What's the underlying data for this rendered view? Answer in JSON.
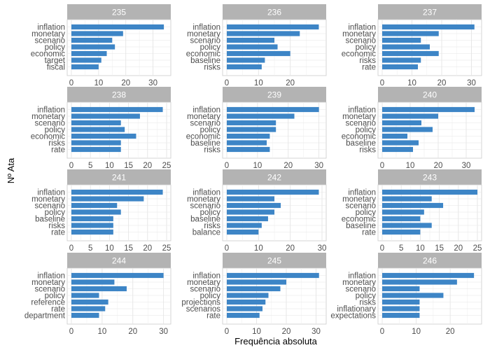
{
  "chart_data": {
    "type": "bar",
    "orientation": "horizontal",
    "layout": "facet_wrap",
    "xlabel": "Frequência absoluta",
    "ylabel": "Nº Ata",
    "grid": true,
    "colors": {
      "bar": "#3d85c6",
      "strip_bg": "#b3b3b3",
      "strip_text": "#ffffff",
      "grid": "#e5e5e5",
      "panel_border": "#cccccc"
    },
    "panels": [
      {
        "title": "235",
        "categories": [
          "inflation",
          "monetary",
          "scenario",
          "policy",
          "economic",
          "target",
          "fiscal"
        ],
        "values": [
          34,
          19,
          15,
          16,
          13,
          11,
          10
        ],
        "xlim": [
          0,
          35
        ],
        "xticks": [
          0,
          10,
          20,
          30
        ]
      },
      {
        "title": "236",
        "categories": [
          "inflation",
          "monetary",
          "scenario",
          "policy",
          "economic",
          "baseline",
          "risks"
        ],
        "values": [
          29,
          23,
          15,
          16,
          20,
          12,
          11
        ],
        "xlim": [
          0,
          30
        ],
        "xticks": [
          0,
          10,
          20
        ]
      },
      {
        "title": "237",
        "categories": [
          "inflation",
          "monetary",
          "scenario",
          "policy",
          "economic",
          "risks",
          "rate"
        ],
        "values": [
          31,
          19,
          13,
          16,
          19,
          13,
          12
        ],
        "xlim": [
          0,
          32
        ],
        "xticks": [
          0,
          10,
          20,
          30
        ]
      },
      {
        "title": "238",
        "categories": [
          "inflation",
          "monetary",
          "scenario",
          "policy",
          "economic",
          "risks",
          "rate"
        ],
        "values": [
          24,
          18,
          13,
          14,
          17,
          13,
          13
        ],
        "xlim": [
          0,
          25
        ],
        "xticks": [
          0,
          5,
          10,
          15,
          20,
          25
        ]
      },
      {
        "title": "239",
        "categories": [
          "inflation",
          "monetary",
          "scenario",
          "policy",
          "economic",
          "baseline",
          "risks"
        ],
        "values": [
          30,
          22,
          16,
          16,
          14,
          13,
          14
        ],
        "xlim": [
          0,
          31
        ],
        "xticks": [
          0,
          10,
          20,
          30
        ]
      },
      {
        "title": "240",
        "categories": [
          "inflation",
          "monetary",
          "scenario",
          "policy",
          "economic",
          "baseline",
          "risks"
        ],
        "values": [
          33,
          20,
          14,
          18,
          9,
          13,
          11
        ],
        "xlim": [
          0,
          34
        ],
        "xticks": [
          0,
          10,
          20,
          30
        ]
      },
      {
        "title": "241",
        "categories": [
          "inflation",
          "monetary",
          "scenario",
          "policy",
          "baseline",
          "risks",
          "rate"
        ],
        "values": [
          24,
          19,
          12,
          13,
          11,
          11,
          11
        ],
        "xlim": [
          0,
          25
        ],
        "xticks": [
          0,
          5,
          10,
          15,
          20,
          25
        ]
      },
      {
        "title": "242",
        "categories": [
          "inflation",
          "monetary",
          "scenario",
          "policy",
          "baseline",
          "risks",
          "balance"
        ],
        "values": [
          29,
          15,
          17,
          15,
          13,
          11,
          10
        ],
        "xlim": [
          0,
          30
        ],
        "xticks": [
          0,
          10,
          20,
          30
        ]
      },
      {
        "title": "243",
        "categories": [
          "inflation",
          "monetary",
          "scenario",
          "policy",
          "economic",
          "baseline",
          "rate"
        ],
        "values": [
          25,
          13,
          16,
          11,
          10,
          13,
          10
        ],
        "xlim": [
          0,
          25
        ],
        "xticks": [
          0,
          5,
          10,
          15,
          20,
          25
        ]
      },
      {
        "title": "244",
        "categories": [
          "inflation",
          "monetary",
          "scenario",
          "policy",
          "reference",
          "rate",
          "department"
        ],
        "values": [
          30,
          14,
          18,
          9,
          12,
          11,
          9
        ],
        "xlim": [
          0,
          31
        ],
        "xticks": [
          0,
          10,
          20,
          30
        ]
      },
      {
        "title": "245",
        "categories": [
          "inflation",
          "monetary",
          "scenario",
          "policy",
          "projections",
          "scenarios",
          "rate"
        ],
        "values": [
          31,
          20,
          18,
          14,
          13,
          12,
          11
        ],
        "xlim": [
          0,
          32
        ],
        "xticks": [
          0,
          10,
          20,
          30
        ]
      },
      {
        "title": "246",
        "categories": [
          "inflation",
          "monetary",
          "scenario",
          "policy",
          "risks",
          "inflationary",
          "expectations"
        ],
        "values": [
          27,
          22,
          11,
          18,
          11,
          11,
          11
        ],
        "xlim": [
          0,
          28
        ],
        "xticks": [
          0,
          10,
          20
        ]
      }
    ]
  }
}
